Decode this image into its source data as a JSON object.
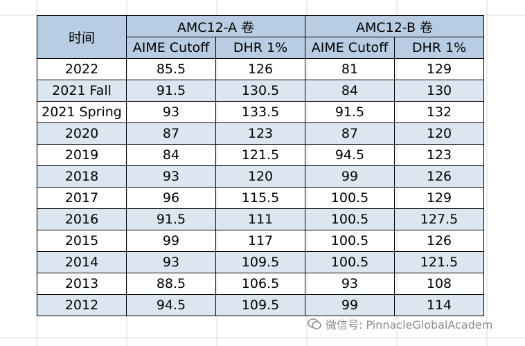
{
  "table": {
    "header": {
      "time": "时间",
      "groups": [
        "AMC12-A 卷",
        "AMC12-B 卷"
      ],
      "subheaders": [
        "AIME Cutoff",
        "DHR 1%",
        "AIME Cutoff",
        "DHR 1%"
      ]
    },
    "rows": [
      [
        "2022",
        85.5,
        126,
        81,
        129
      ],
      [
        "2021 Fall",
        91.5,
        130.5,
        84,
        130
      ],
      [
        "2021 Spring",
        93,
        133.5,
        91.5,
        132
      ],
      [
        "2020",
        87,
        123,
        87,
        120
      ],
      [
        "2019",
        84,
        121.5,
        94.5,
        123
      ],
      [
        "2018",
        93,
        120,
        99,
        126
      ],
      [
        "2017",
        96,
        115.5,
        100.5,
        129
      ],
      [
        "2016",
        91.5,
        111,
        100.5,
        127.5
      ],
      [
        "2015",
        99,
        117,
        100.5,
        126
      ],
      [
        "2014",
        93,
        109.5,
        100.5,
        121.5
      ],
      [
        "2013",
        88.5,
        106.5,
        93,
        108
      ],
      [
        "2012",
        94.5,
        109.5,
        99,
        114
      ]
    ]
  },
  "watermark": "微信号: PinnacleGlobalAcadem"
}
